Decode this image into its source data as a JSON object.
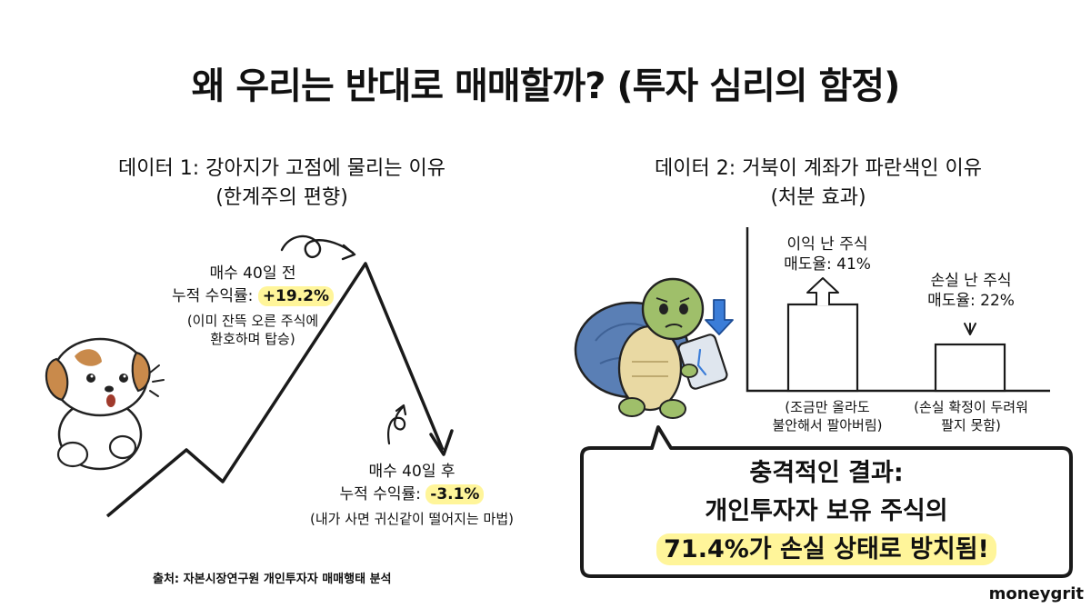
{
  "title": "왜 우리는 반대로 매매할까? (투자 심리의 함정)",
  "left": {
    "heading_line1": "데이터 1: 강아지가 고점에 물리는 이유",
    "heading_line2": "(한계주의 편향)",
    "before": {
      "line1": "매수 40일 전",
      "line2_prefix": "누적 수익률:",
      "value": "+19.2%",
      "note_line1": "(이미 잔뜩 오른 주식에",
      "note_line2": "환호하며 탑승)"
    },
    "after": {
      "line1": "매수 40일 후",
      "line2_prefix": "누적 수익률:",
      "value": "-3.1%",
      "note": "(내가 사면 귀신같이 떨어지는 마법)"
    },
    "source": "출처: 자본시장연구원 개인투자자 매매행태 분석"
  },
  "right": {
    "heading_line1": "데이터 2: 거북이 계좌가 파란색인 이유",
    "heading_line2": "(처분 효과)",
    "profit": {
      "label_line1": "이익 난 주식",
      "label_line2": "매도율: 41%",
      "rate": 41,
      "note_line1": "(조금만 올라도",
      "note_line2": "불안해서 팔아버림)"
    },
    "loss": {
      "label_line1": "손실 난 주식",
      "label_line2": "매도율: 22%",
      "rate": 22,
      "note_line1": "(손실 확정이 두려워",
      "note_line2": "팔지 못함)"
    },
    "bubble": {
      "line1": "충격적인 결과:",
      "line2": "개인투자자 보유 주식의",
      "line3": "71.4%가 손실 상태로 방치됨!"
    }
  },
  "watermark": "moneygrit",
  "colors": {
    "highlight": "#fff59a",
    "turtle_shell": "#5a7fb5",
    "turtle_skin": "#9fbf6a",
    "dog_patch": "#c98a4b",
    "down_arrow": "#3b7dd8"
  }
}
